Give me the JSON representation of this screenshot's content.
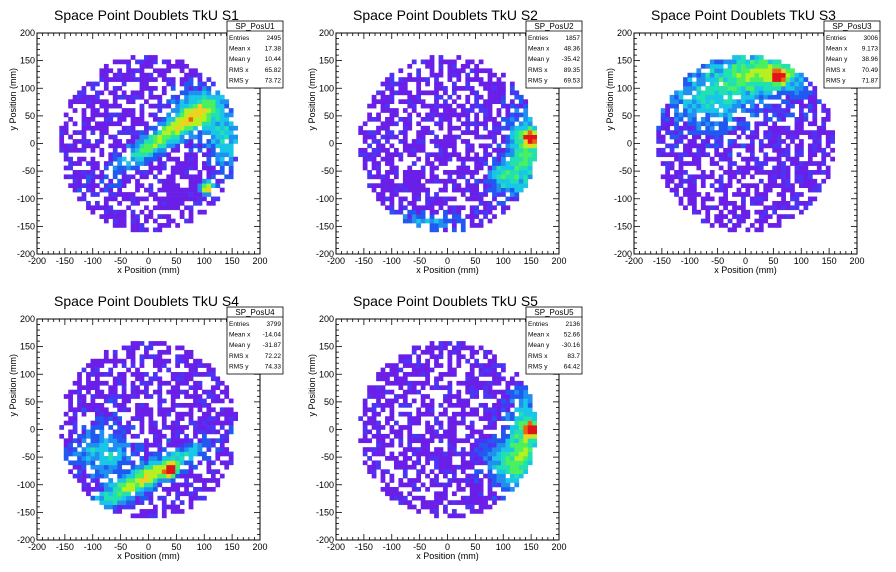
{
  "panels": [
    {
      "title": "Space Point Doublets TkU S1",
      "stats": {
        "name": "SP_PosU1",
        "rows": [
          {
            "label": "Entries",
            "value": "2495"
          },
          {
            "label": "Mean x",
            "value": "17.38"
          },
          {
            "label": "Mean y",
            "value": "10.44"
          },
          {
            "label": "RMS x",
            "value": "65.82"
          },
          {
            "label": "RMS y",
            "value": "73.72"
          }
        ]
      }
    },
    {
      "title": "Space Point Doublets TkU S2",
      "stats": {
        "name": "SP_PosU2",
        "rows": [
          {
            "label": "Entries",
            "value": "1857"
          },
          {
            "label": "Mean x",
            "value": "48.36"
          },
          {
            "label": "Mean y",
            "value": "-35.42"
          },
          {
            "label": "RMS x",
            "value": "89.35"
          },
          {
            "label": "RMS y",
            "value": "69.53"
          }
        ]
      }
    },
    {
      "title": "Space Point Doublets TkU S3",
      "stats": {
        "name": "SP_PosU3",
        "rows": [
          {
            "label": "Entries",
            "value": "3006"
          },
          {
            "label": "Mean x",
            "value": "9.173"
          },
          {
            "label": "Mean y",
            "value": "38.96"
          },
          {
            "label": "RMS x",
            "value": "70.49"
          },
          {
            "label": "RMS y",
            "value": "71.87"
          }
        ]
      }
    },
    {
      "title": "Space Point Doublets TkU S4",
      "stats": {
        "name": "SP_PosU4",
        "rows": [
          {
            "label": "Entries",
            "value": "3799"
          },
          {
            "label": "Mean x",
            "value": "-14.04"
          },
          {
            "label": "Mean y",
            "value": "-31.87"
          },
          {
            "label": "RMS x",
            "value": "72.22"
          },
          {
            "label": "RMS y",
            "value": "74.33"
          }
        ]
      }
    },
    {
      "title": "Space Point Doublets TkU S5",
      "stats": {
        "name": "SP_PosU5",
        "rows": [
          {
            "label": "Entries",
            "value": "2136"
          },
          {
            "label": "Mean x",
            "value": "52.66"
          },
          {
            "label": "Mean y",
            "value": "-30.16"
          },
          {
            "label": "RMS x",
            "value": "83.7"
          },
          {
            "label": "RMS y",
            "value": "64.42"
          }
        ]
      }
    }
  ],
  "chart_data": [
    {
      "type": "heatmap",
      "title": "Space Point Doublets TkU S1",
      "xlabel": "x Position (mm)",
      "ylabel": "y Position (mm)",
      "xlim": [
        -200,
        200
      ],
      "ylim": [
        -200,
        200
      ],
      "xticks": [
        -200,
        -150,
        -100,
        -50,
        0,
        50,
        100,
        150,
        200
      ],
      "yticks": [
        -200,
        -150,
        -100,
        -50,
        0,
        50,
        100,
        150,
        200
      ],
      "cell_size_mm": 8,
      "populated_region": {
        "shape": "circle",
        "center": [
          0,
          0
        ],
        "radius_mm": 160
      },
      "hotspots": [
        {
          "x": 30,
          "y": 15,
          "sx": 70,
          "sy": 14,
          "angle_deg": 35,
          "amp": 0.5
        },
        {
          "x": 90,
          "y": 55,
          "sx": 30,
          "sy": 30,
          "amp": 0.35
        },
        {
          "x": 140,
          "y": 5,
          "sx": 20,
          "sy": 40,
          "amp": 0.3
        },
        {
          "x": 105,
          "y": -80,
          "sx": 8,
          "sy": 8,
          "amp": 0.7
        }
      ],
      "stats": {
        "name": "SP_PosU1",
        "entries": 2495,
        "mean_x": 17.38,
        "mean_y": 10.44,
        "rms_x": 65.82,
        "rms_y": 73.72
      }
    },
    {
      "type": "heatmap",
      "title": "Space Point Doublets TkU S2",
      "xlabel": "x Position (mm)",
      "ylabel": "y Position (mm)",
      "xlim": [
        -200,
        200
      ],
      "ylim": [
        -200,
        200
      ],
      "xticks": [
        -200,
        -150,
        -100,
        -50,
        0,
        50,
        100,
        150,
        200
      ],
      "yticks": [
        -200,
        -150,
        -100,
        -50,
        0,
        50,
        100,
        150,
        200
      ],
      "cell_size_mm": 8,
      "populated_region": {
        "shape": "circle",
        "center": [
          0,
          0
        ],
        "radius_mm": 160
      },
      "hotspots": [
        {
          "x": 140,
          "y": -10,
          "sx": 22,
          "sy": 50,
          "amp": 0.45
        },
        {
          "x": 100,
          "y": -60,
          "sx": 20,
          "sy": 20,
          "amp": 0.35
        },
        {
          "x": 150,
          "y": 10,
          "sx": 8,
          "sy": 8,
          "amp": 0.75
        },
        {
          "x": -30,
          "y": -140,
          "sx": 40,
          "sy": 10,
          "amp": 0.25
        }
      ],
      "stats": {
        "name": "SP_PosU2",
        "entries": 1857,
        "mean_x": 48.36,
        "mean_y": -35.42,
        "rms_x": 89.35,
        "rms_y": 69.53
      }
    },
    {
      "type": "heatmap",
      "title": "Space Point Doublets TkU S3",
      "xlabel": "x Position (mm)",
      "ylabel": "y Position (mm)",
      "xlim": [
        -200,
        200
      ],
      "ylim": [
        -200,
        200
      ],
      "xticks": [
        -200,
        -150,
        -100,
        -50,
        0,
        50,
        100,
        150,
        200
      ],
      "yticks": [
        -200,
        -150,
        -100,
        -50,
        0,
        50,
        100,
        150,
        200
      ],
      "cell_size_mm": 8,
      "populated_region": {
        "shape": "circle",
        "center": [
          0,
          0
        ],
        "radius_mm": 160
      },
      "hotspots": [
        {
          "x": 40,
          "y": 130,
          "sx": 60,
          "sy": 25,
          "amp": 0.5
        },
        {
          "x": -60,
          "y": 80,
          "sx": 60,
          "sy": 40,
          "amp": 0.3
        },
        {
          "x": 60,
          "y": 120,
          "sx": 8,
          "sy": 8,
          "amp": 0.65
        }
      ],
      "stats": {
        "name": "SP_PosU3",
        "entries": 3006,
        "mean_x": 9.173,
        "mean_y": 38.96,
        "rms_x": 70.49,
        "rms_y": 71.87
      }
    },
    {
      "type": "heatmap",
      "title": "Space Point Doublets TkU S4",
      "xlabel": "x Position (mm)",
      "ylabel": "y Position (mm)",
      "xlim": [
        -200,
        200
      ],
      "ylim": [
        -200,
        200
      ],
      "xticks": [
        -200,
        -150,
        -100,
        -50,
        0,
        50,
        100,
        150,
        200
      ],
      "yticks": [
        -200,
        -150,
        -100,
        -50,
        0,
        50,
        100,
        150,
        200
      ],
      "cell_size_mm": 8,
      "populated_region": {
        "shape": "circle",
        "center": [
          0,
          0
        ],
        "radius_mm": 160
      },
      "hotspots": [
        {
          "x": -10,
          "y": -90,
          "sx": 80,
          "sy": 14,
          "angle_deg": 30,
          "amp": 0.55
        },
        {
          "x": -80,
          "y": -40,
          "sx": 40,
          "sy": 30,
          "amp": 0.3
        },
        {
          "x": 40,
          "y": -75,
          "sx": 8,
          "sy": 8,
          "amp": 0.7
        }
      ],
      "stats": {
        "name": "SP_PosU4",
        "entries": 3799,
        "mean_x": -14.04,
        "mean_y": -31.87,
        "rms_x": 72.22,
        "rms_y": 74.33
      }
    },
    {
      "type": "heatmap",
      "title": "Space Point Doublets TkU S5",
      "xlabel": "x Position (mm)",
      "ylabel": "y Position (mm)",
      "xlim": [
        -200,
        200
      ],
      "ylim": [
        -200,
        200
      ],
      "xticks": [
        -200,
        -150,
        -100,
        -50,
        0,
        50,
        100,
        150,
        200
      ],
      "yticks": [
        -200,
        -150,
        -100,
        -50,
        0,
        50,
        100,
        150,
        200
      ],
      "cell_size_mm": 8,
      "populated_region": {
        "shape": "circle",
        "center": [
          0,
          0
        ],
        "radius_mm": 160
      },
      "hotspots": [
        {
          "x": 140,
          "y": -20,
          "sx": 20,
          "sy": 60,
          "amp": 0.45
        },
        {
          "x": 100,
          "y": -60,
          "sx": 25,
          "sy": 30,
          "amp": 0.3
        },
        {
          "x": 150,
          "y": 0,
          "sx": 8,
          "sy": 8,
          "amp": 0.75
        }
      ],
      "stats": {
        "name": "SP_PosU5",
        "entries": 2136,
        "mean_x": 52.66,
        "mean_y": -30.16,
        "rms_x": 83.7,
        "rms_y": 64.42
      }
    }
  ],
  "colors": {
    "palette": [
      "#6a1fe8",
      "#4b35f5",
      "#2159f0",
      "#1f8ff0",
      "#19c6e8",
      "#22e0b0",
      "#4bf060",
      "#b7f020",
      "#f0d020",
      "#f06010",
      "#e0141a"
    ],
    "frame": "#000000",
    "background": "#ffffff"
  }
}
